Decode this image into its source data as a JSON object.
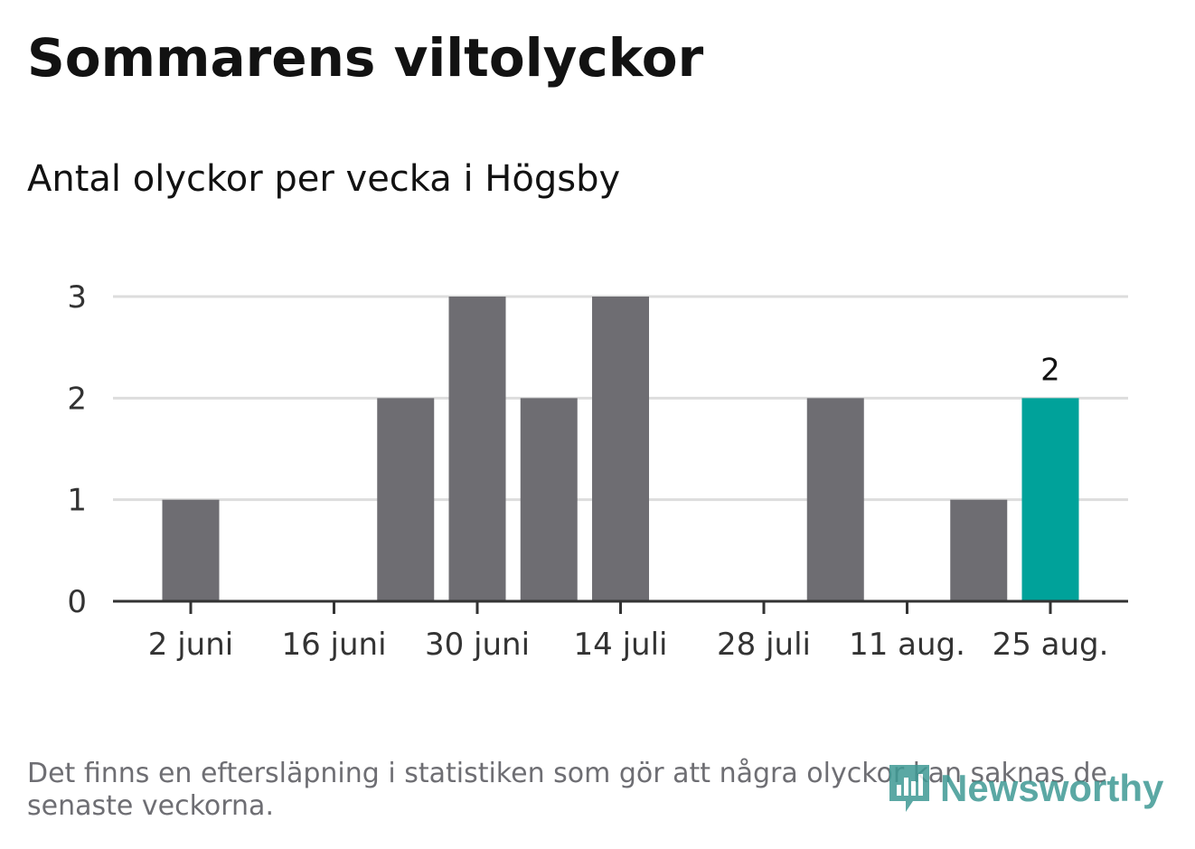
{
  "header": {
    "title": "Sommarens viltolyckor",
    "subtitle": "Antal olyckor per vecka i Högsby"
  },
  "footer": {
    "note": "Det finns en eftersläpning i statistiken som gör att några olyckor kan saknas de senaste veckorna.",
    "logo_text": "Newsworthy"
  },
  "colors": {
    "bar": "#6e6d72",
    "highlight": "#00a29a",
    "grid": "#dddddd",
    "axis": "#333333",
    "text": "#333333"
  },
  "chart_data": {
    "type": "bar",
    "categories": [
      "2 juni",
      "9 juni",
      "16 juni",
      "23 juni",
      "30 juni",
      "7 juli",
      "14 juli",
      "21 juli",
      "28 juli",
      "4 aug.",
      "11 aug.",
      "18 aug.",
      "25 aug."
    ],
    "values": [
      1,
      0,
      0,
      2,
      3,
      2,
      3,
      0,
      0,
      2,
      0,
      1,
      2
    ],
    "highlight_index": 12,
    "tick_labels": [
      "2 juni",
      "16 juni",
      "30 juni",
      "14 juli",
      "28 juli",
      "11 aug.",
      "25 aug."
    ],
    "y_ticks": [
      0,
      1,
      2,
      3
    ],
    "ylim": [
      0,
      3
    ],
    "grid": true,
    "data_labels": [
      {
        "category": "25 aug.",
        "value": 2
      }
    ]
  }
}
